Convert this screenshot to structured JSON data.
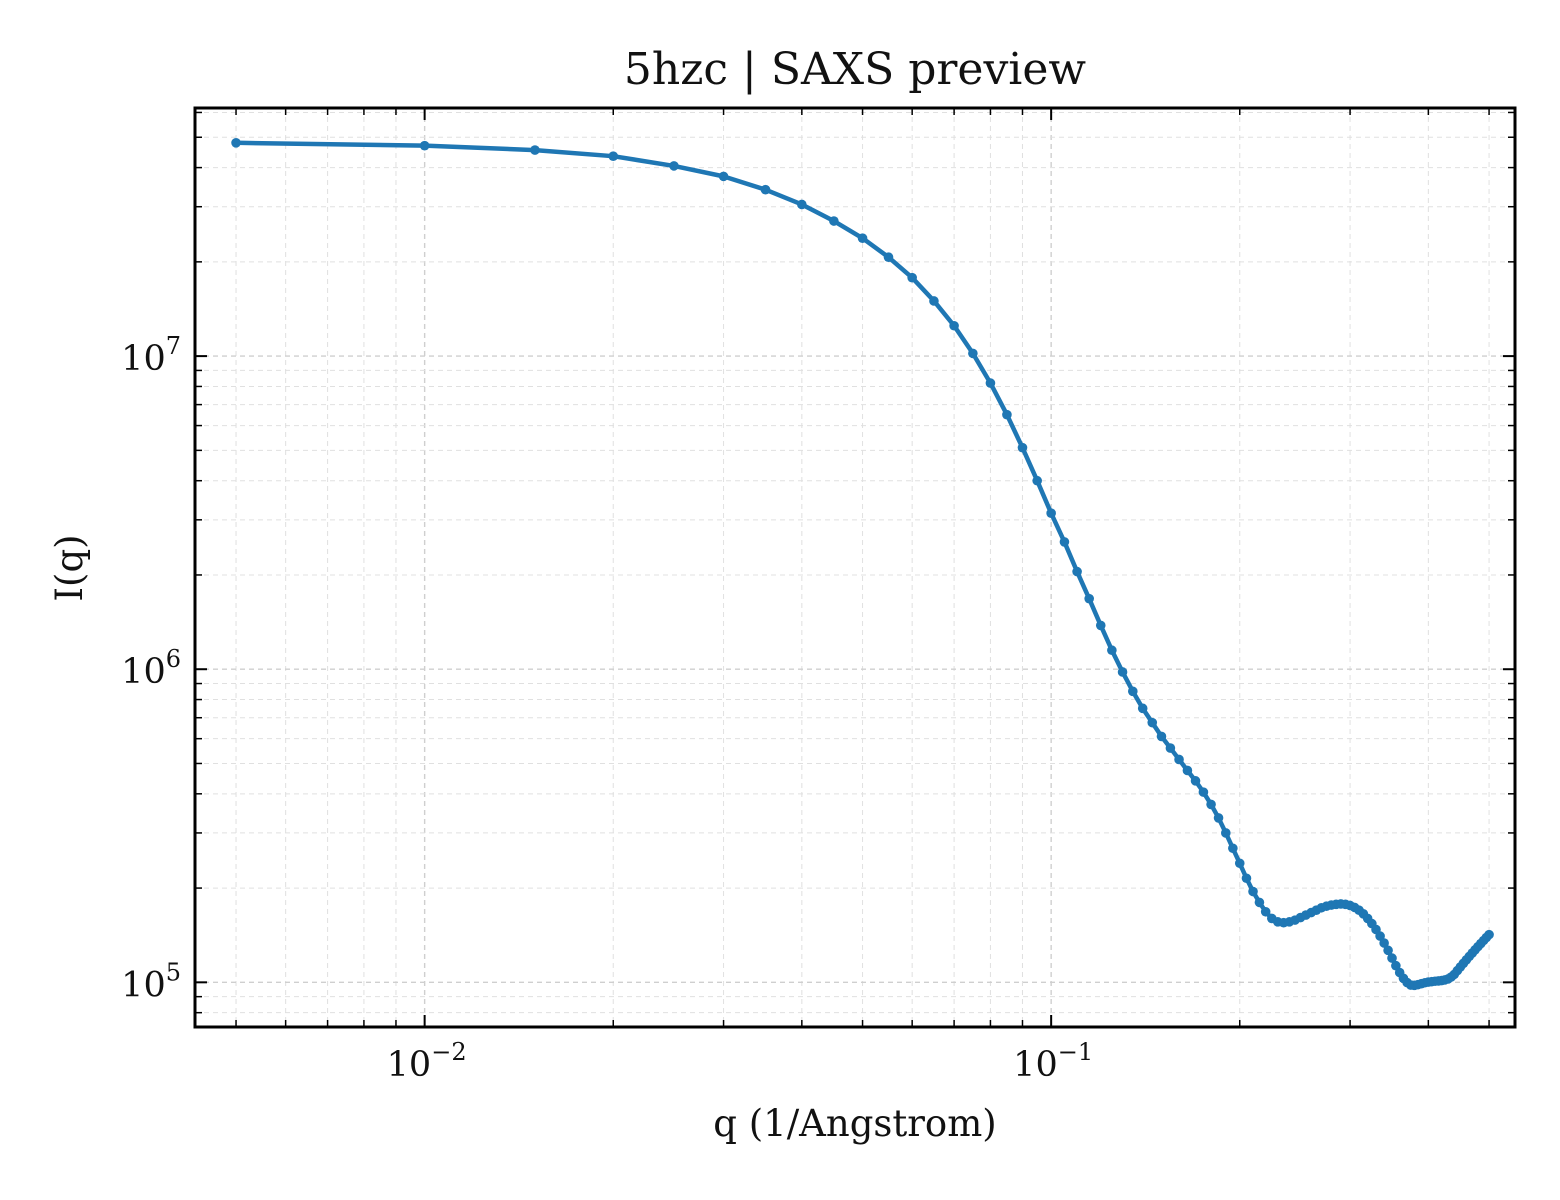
{
  "chart_data": {
    "type": "line",
    "title": "5hzc | SAXS preview",
    "xlabel": "q (1/Angstrom)",
    "ylabel": "I(q)",
    "xscale": "log",
    "yscale": "log",
    "xlim": [
      0.0043,
      0.55
    ],
    "ylim": [
      72000,
      62000000
    ],
    "grid": true,
    "legend": "none",
    "x_ticks": [
      {
        "value": 0.01,
        "base": "10",
        "exp": "−2"
      },
      {
        "value": 0.1,
        "base": "10",
        "exp": "−1"
      }
    ],
    "y_ticks": [
      {
        "value": 100000,
        "base": "10",
        "exp": "5"
      },
      {
        "value": 1000000,
        "base": "10",
        "exp": "6"
      },
      {
        "value": 10000000,
        "base": "10",
        "exp": "7"
      }
    ],
    "series": [
      {
        "color": "#1f77b4",
        "x": [
          0.005,
          0.01,
          0.015,
          0.02,
          0.025,
          0.03,
          0.035,
          0.04,
          0.045,
          0.05,
          0.055,
          0.06,
          0.065,
          0.07,
          0.075,
          0.08,
          0.085,
          0.09,
          0.095,
          0.1,
          0.105,
          0.11,
          0.115,
          0.12,
          0.125,
          0.13,
          0.135,
          0.14,
          0.145,
          0.15,
          0.155,
          0.16,
          0.165,
          0.17,
          0.175,
          0.18,
          0.185,
          0.19,
          0.195,
          0.2,
          0.205,
          0.21,
          0.215,
          0.22,
          0.225,
          0.23,
          0.235,
          0.24,
          0.245,
          0.25,
          0.255,
          0.26,
          0.265,
          0.27,
          0.275,
          0.28,
          0.285,
          0.29,
          0.295,
          0.3,
          0.305,
          0.31,
          0.315,
          0.32,
          0.325,
          0.33,
          0.335,
          0.34,
          0.345,
          0.35,
          0.355,
          0.36,
          0.365,
          0.37,
          0.375,
          0.38,
          0.385,
          0.39,
          0.395,
          0.4,
          0.405,
          0.41,
          0.415,
          0.42,
          0.425,
          0.43,
          0.435,
          0.44,
          0.445,
          0.45,
          0.455,
          0.46,
          0.465,
          0.47,
          0.475,
          0.48,
          0.485,
          0.49,
          0.495,
          0.5
        ],
        "y": [
          48000000,
          47000000,
          45500000,
          43500000,
          40500000,
          37500000,
          34000000,
          30500000,
          27000000,
          23800000,
          20700000,
          17800000,
          15000000,
          12500000,
          10200000,
          8200000,
          6500000,
          5100000,
          4000000,
          3150000,
          2550000,
          2050000,
          1680000,
          1380000,
          1150000,
          980000,
          850000,
          750000,
          675000,
          610000,
          560000,
          515000,
          475000,
          440000,
          405000,
          370000,
          335000,
          300000,
          268000,
          240000,
          215000,
          195000,
          180000,
          168000,
          160000,
          156000,
          155000,
          156000,
          158000,
          161000,
          164000,
          167000,
          170000,
          173000,
          175000,
          176500,
          177500,
          178000,
          177500,
          176000,
          173500,
          170000,
          165500,
          160000,
          154000,
          147500,
          140500,
          133500,
          126500,
          119500,
          113000,
          107500,
          103000,
          99800,
          98000,
          97800,
          98300,
          99000,
          99700,
          100200,
          100500,
          100800,
          101000,
          101300,
          101800,
          102500,
          104000,
          106000,
          109000,
          112000,
          115000,
          118000,
          121000,
          124000,
          127000,
          130000,
          133000,
          136000,
          139000,
          142000
        ]
      }
    ]
  }
}
